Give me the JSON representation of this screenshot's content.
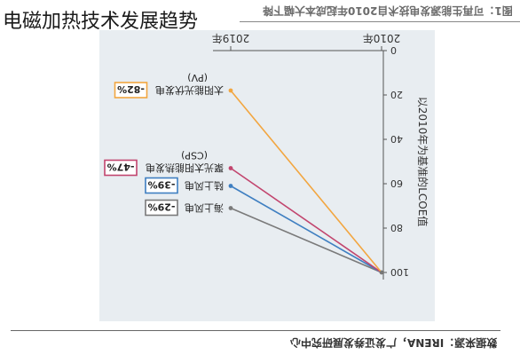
{
  "page": {
    "title": "电磁加热技术发展趋势",
    "header_text": "图1：可再生能源发电技术自2010年起成本大幅下降",
    "source_text": "数据来源：IRENA，广发证券发展研究中心"
  },
  "chart_data": {
    "type": "line",
    "ylabel": "以2010年为基准的LCOE值",
    "categories": [
      "2010年",
      "2019年"
    ],
    "ylim": [
      0,
      100
    ],
    "yticks": [
      0,
      20,
      40,
      60,
      80,
      100
    ],
    "note": "2010年 = 100%",
    "grid": false,
    "series": [
      {
        "name": "海上风电",
        "values": [
          100,
          71
        ],
        "change_label": "-29%",
        "color": "#7a7a7a"
      },
      {
        "name": "陆上风电",
        "values": [
          100,
          61
        ],
        "change_label": "-39%",
        "color": "#3f7fc1"
      },
      {
        "name": "聚光太阳能热发电",
        "name_line2": "(CSP)",
        "values": [
          100,
          53
        ],
        "change_label": "-47%",
        "color": "#c2456e"
      },
      {
        "name": "太阳能光伏发电",
        "name_line2": "(PV)",
        "values": [
          100,
          18
        ],
        "change_label": "-82%",
        "color": "#f2a640"
      }
    ]
  }
}
